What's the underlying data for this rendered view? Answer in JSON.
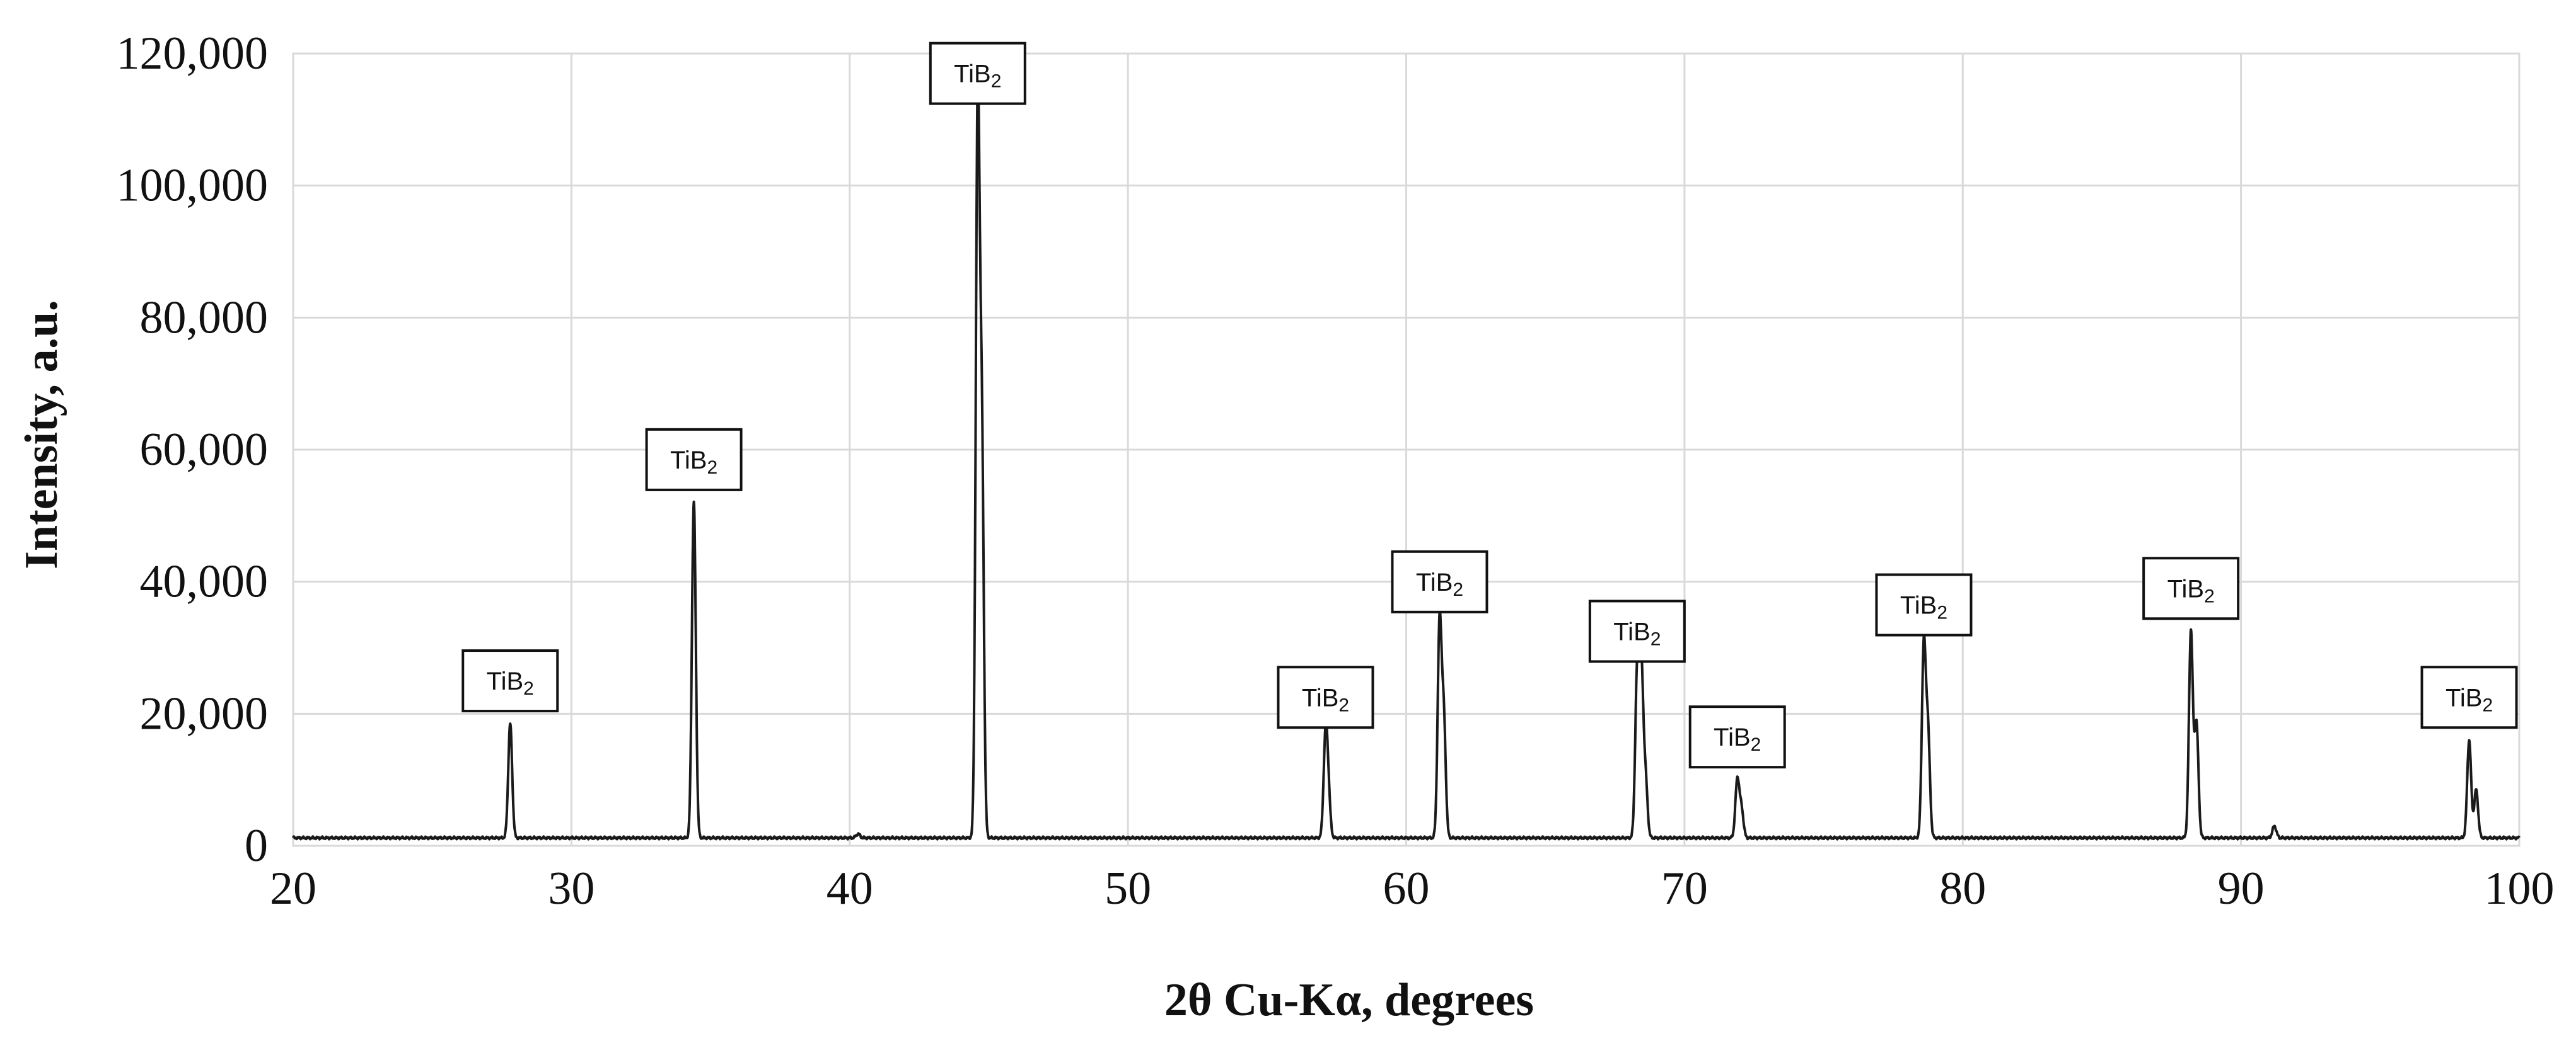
{
  "chart_data": {
    "type": "line",
    "title": "",
    "xlabel": "2θ Cu-Kα, degrees",
    "ylabel": "Intensity, a.u.",
    "xlim": [
      20,
      100
    ],
    "ylim": [
      0,
      120000
    ],
    "x_ticks": [
      "20",
      "30",
      "40",
      "50",
      "60",
      "70",
      "80",
      "90",
      "100"
    ],
    "y_ticks": [
      "0",
      "20,000",
      "40,000",
      "60,000",
      "80,000",
      "100,000",
      "120,000"
    ],
    "grid": true,
    "legend": "none",
    "line_color": "#1a1a1a",
    "grid_color": "#d9d9d9",
    "baseline": 1200,
    "series": [
      {
        "peaks": [
          {
            "x": 27.8,
            "y": 18500,
            "label": "TiB2"
          },
          {
            "x": 34.4,
            "y": 52000,
            "label": "TiB2"
          },
          {
            "x": 44.6,
            "y": 110500,
            "label": "TiB2"
          },
          {
            "x": 57.1,
            "y": 16000,
            "label": "TiB2"
          },
          {
            "x": 61.2,
            "y": 33500,
            "label": "TiB2"
          },
          {
            "x": 68.3,
            "y": 26000,
            "label": "TiB2"
          },
          {
            "x": 71.9,
            "y": 10000,
            "label": "TiB2"
          },
          {
            "x": 78.6,
            "y": 30000,
            "label": "TiB2"
          },
          {
            "x": 88.2,
            "y": 32500,
            "label": "TiB2"
          },
          {
            "x": 98.2,
            "y": 16000,
            "label": "TiB2"
          }
        ],
        "minor_peaks": [
          {
            "x": 44.75,
            "y": 60000
          },
          {
            "x": 61.35,
            "y": 19000
          },
          {
            "x": 68.45,
            "y": 26000
          },
          {
            "x": 68.6,
            "y": 10000
          },
          {
            "x": 78.75,
            "y": 17000
          },
          {
            "x": 88.4,
            "y": 18500
          },
          {
            "x": 98.45,
            "y": 8500
          },
          {
            "x": 57.2,
            "y": 7500
          },
          {
            "x": 72.05,
            "y": 5500
          },
          {
            "x": 40.3,
            "y": 1800
          },
          {
            "x": 91.2,
            "y": 3000
          }
        ]
      }
    ]
  }
}
